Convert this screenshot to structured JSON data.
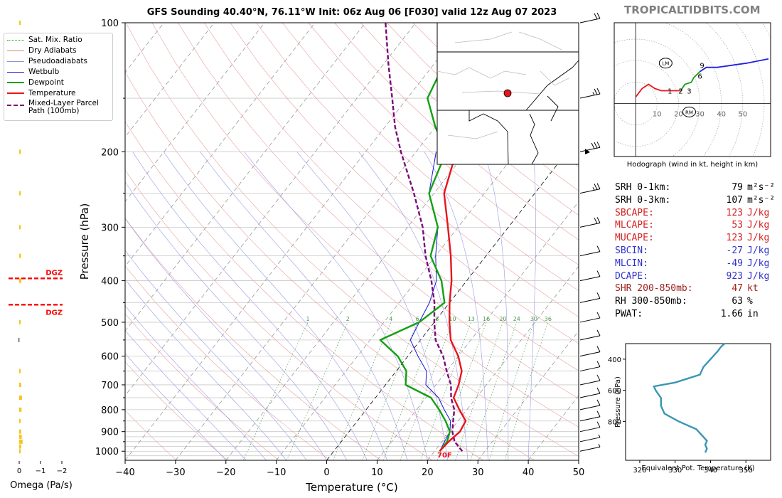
{
  "brand": "TROPICALTIDBITS.COM",
  "title": "GFS Sounding 40.40°N, 76.11°W Init: 06z Aug 06 [F030] valid 12z Aug 07 2023",
  "colors": {
    "temperature": "#e8141c",
    "dewpoint": "#12a012",
    "wetbulb": "#1515d8",
    "parcel": "#7a0a7a",
    "dgz": "#ff0000",
    "omega": "#f5c518",
    "hodo_low": "#e8141c",
    "hodo_mid": "#12a012",
    "hodo_high": "#2020e0",
    "theta_e": "#3a96b4",
    "label_red": "#d42020",
    "label_blue": "#3333cc",
    "label_brown": "#a02020"
  },
  "legend": {
    "items": [
      {
        "label": "Sat. Mix. Ratio",
        "style": "dotted-green"
      },
      {
        "label": "Dry Adiabats",
        "style": "thin-red"
      },
      {
        "label": "Pseudoadiabats",
        "style": "thin-blue"
      },
      {
        "label": "Wetbulb",
        "style": "blue"
      },
      {
        "label": "Dewpoint",
        "style": "green"
      },
      {
        "label": "Temperature",
        "style": "red"
      },
      {
        "label": "Mixed-Layer Parcel Path (100mb)",
        "style": "purple-dashed"
      }
    ]
  },
  "omega": {
    "xlabel": "Omega (Pa/s)",
    "ticks": [
      "0",
      "−1",
      "−2"
    ],
    "dgz_label": "DGZ"
  },
  "hodograph": {
    "caption": "Hodograph (wind in kt, height in km)",
    "ring_labels": [
      "10",
      "20",
      "30",
      "40",
      "50"
    ],
    "marker_lm": "LM",
    "marker_rm": "RM",
    "height_labels": [
      "1",
      "2",
      "3",
      "6",
      "9"
    ]
  },
  "indices": [
    {
      "label": "SRH 0-1km:",
      "value": "79",
      "unit": "m²s⁻²",
      "color": "#000000"
    },
    {
      "label": "SRH 0-3km:",
      "value": "107",
      "unit": "m²s⁻²",
      "color": "#000000"
    },
    {
      "label": "SBCAPE:",
      "value": "123",
      "unit": "J/kg",
      "color": "#d42020"
    },
    {
      "label": "MLCAPE:",
      "value": "53",
      "unit": "J/kg",
      "color": "#d42020"
    },
    {
      "label": "MUCAPE:",
      "value": "123",
      "unit": "J/kg",
      "color": "#d42020"
    },
    {
      "label": "SBCIN:",
      "value": "-27",
      "unit": "J/kg",
      "color": "#3333cc"
    },
    {
      "label": "MLCIN:",
      "value": "-49",
      "unit": "J/kg",
      "color": "#3333cc"
    },
    {
      "label": "DCAPE:",
      "value": "923",
      "unit": "J/kg",
      "color": "#3333cc"
    },
    {
      "label": "SHR 200-850mb:",
      "value": "47",
      "unit": "kt",
      "color": "#a02020"
    },
    {
      "label": "RH 300-850mb:",
      "value": "63",
      "unit": "%",
      "color": "#000000"
    },
    {
      "label": "PWAT:",
      "value": "1.66",
      "unit": "in",
      "color": "#000000"
    }
  ],
  "surface_temp_label": "70F",
  "chart_data": [
    {
      "type": "line",
      "name": "skew-t",
      "xlabel": "Temperature (°C)",
      "ylabel": "Pressure (hPa)",
      "xlim": [
        -40,
        50
      ],
      "ylim": [
        1050,
        100
      ],
      "y_scale": "log",
      "xticks": [
        "−40",
        "−30",
        "−20",
        "−10",
        "0",
        "10",
        "20",
        "30",
        "40",
        "50"
      ],
      "yticks": [
        "100",
        "200",
        "300",
        "400",
        "500",
        "600",
        "700",
        "800",
        "900",
        "1000"
      ],
      "mixing_ratio_labels": [
        "1",
        "2",
        "4",
        "6",
        "8",
        "10",
        "13",
        "16",
        "20",
        "24",
        "30",
        "36"
      ],
      "series": [
        {
          "name": "Temperature",
          "points": [
            [
              21,
              1000
            ],
            [
              21.3,
              950
            ],
            [
              22,
              900
            ],
            [
              21.5,
              850
            ],
            [
              18.5,
              800
            ],
            [
              15.5,
              750
            ],
            [
              14.5,
              700
            ],
            [
              13,
              650
            ],
            [
              10,
              600
            ],
            [
              6,
              550
            ],
            [
              3,
              500
            ],
            [
              0,
              450
            ],
            [
              -3,
              400
            ],
            [
              -7,
              350
            ],
            [
              -12,
              300
            ],
            [
              -18,
              250
            ],
            [
              -22,
              200
            ],
            [
              -20,
              175
            ],
            [
              -18,
              150
            ],
            [
              -14,
              125
            ],
            [
              -11,
              100
            ]
          ]
        },
        {
          "name": "Dewpoint",
          "points": [
            [
              21,
              1000
            ],
            [
              21,
              950
            ],
            [
              20,
              900
            ],
            [
              17.5,
              850
            ],
            [
              14.5,
              800
            ],
            [
              11,
              750
            ],
            [
              4,
              700
            ],
            [
              2,
              650
            ],
            [
              -2,
              600
            ],
            [
              -8,
              550
            ],
            [
              -3,
              500
            ],
            [
              -1,
              450
            ],
            [
              -5,
              400
            ],
            [
              -11,
              350
            ],
            [
              -14,
              300
            ],
            [
              -21,
              250
            ],
            [
              -24,
              200
            ],
            [
              -30,
              175
            ],
            [
              -36,
              150
            ],
            [
              -38,
              125
            ],
            [
              -40,
              100
            ]
          ]
        },
        {
          "name": "Wetbulb",
          "points": [
            [
              21,
              1000
            ],
            [
              20.5,
              950
            ],
            [
              20,
              900
            ],
            [
              18.5,
              850
            ],
            [
              15.5,
              800
            ],
            [
              12.5,
              750
            ],
            [
              8,
              700
            ],
            [
              6,
              650
            ],
            [
              2,
              600
            ],
            [
              -2,
              550
            ],
            [
              -3,
              500
            ],
            [
              -4,
              450
            ],
            [
              -6,
              400
            ],
            [
              -10,
              350
            ],
            [
              -14,
              300
            ],
            [
              -21,
              250
            ],
            [
              -26,
              200
            ]
          ]
        },
        {
          "name": "Mixed-Layer Parcel Path (100mb)",
          "points": [
            [
              25.5,
              1000
            ],
            [
              22.5,
              950
            ],
            [
              20.5,
              900
            ],
            [
              19,
              850
            ],
            [
              17.5,
              800
            ],
            [
              15,
              750
            ],
            [
              13,
              700
            ],
            [
              10,
              650
            ],
            [
              7,
              600
            ],
            [
              3,
              550
            ],
            [
              0,
              500
            ],
            [
              -3,
              450
            ],
            [
              -7,
              400
            ],
            [
              -12,
              350
            ],
            [
              -17,
              300
            ],
            [
              -24,
              250
            ],
            [
              -33,
              200
            ],
            [
              -38,
              175
            ],
            [
              -43,
              150
            ],
            [
              -49,
              125
            ],
            [
              -56,
              100
            ]
          ]
        }
      ]
    },
    {
      "type": "line",
      "name": "equivalent-potential-temperature",
      "xlabel": "Equivalent Pot. Temperature (K)",
      "ylabel": "Pressure (hPa)",
      "xlim": [
        316,
        357
      ],
      "ylim": [
        1050,
        300
      ],
      "xticks": [
        "320",
        "330",
        "340",
        "350"
      ],
      "yticks": [
        "400",
        "600",
        "800"
      ],
      "series": [
        {
          "name": "theta-e",
          "points": [
            [
              338.5,
              1000
            ],
            [
              339,
              975
            ],
            [
              338.5,
              950
            ],
            [
              339,
              925
            ],
            [
              338,
              900
            ],
            [
              336,
              850
            ],
            [
              331,
              800
            ],
            [
              327,
              750
            ],
            [
              326,
              700
            ],
            [
              326,
              650
            ],
            [
              324.5,
              600
            ],
            [
              324,
              575
            ],
            [
              330,
              550
            ],
            [
              337,
              500
            ],
            [
              338,
              450
            ],
            [
              340,
              400
            ],
            [
              342,
              350
            ],
            [
              343,
              320
            ],
            [
              344,
              300
            ]
          ]
        }
      ]
    },
    {
      "type": "line",
      "name": "hodograph",
      "xlim": [
        -10,
        63
      ],
      "ylim": [
        -25,
        38
      ],
      "series": [
        {
          "name": "0-3 km",
          "points": [
            [
              0,
              3
            ],
            [
              3,
              7
            ],
            [
              6,
              9
            ],
            [
              9,
              7
            ],
            [
              12,
              6
            ],
            [
              16,
              6
            ],
            [
              19,
              6
            ],
            [
              21,
              6
            ]
          ]
        },
        {
          "name": "3-6 km",
          "points": [
            [
              21,
              6
            ],
            [
              23,
              9
            ],
            [
              26,
              10
            ],
            [
              27,
              12
            ],
            [
              30,
              15
            ]
          ]
        },
        {
          "name": "6-12 km",
          "points": [
            [
              30,
              15
            ],
            [
              33,
              17
            ],
            [
              38,
              17
            ],
            [
              45,
              18
            ],
            [
              52,
              19
            ],
            [
              62,
              21
            ]
          ]
        }
      ],
      "storm_motion": {
        "left_mover": [
          14,
          19
        ],
        "right_mover": [
          25,
          -4
        ]
      }
    },
    {
      "type": "bar",
      "name": "omega",
      "xlim": [
        0.2,
        -2.2
      ],
      "ylim": [
        1050,
        100
      ],
      "series": [
        {
          "name": "omega",
          "points": [
            [
              0.0,
              100
            ],
            [
              -0.02,
              140
            ],
            [
              0.0,
              200
            ],
            [
              0.0,
              250
            ],
            [
              -0.05,
              300
            ],
            [
              -0.08,
              350
            ],
            [
              -0.1,
              400
            ],
            [
              0.0,
              500
            ],
            [
              0.05,
              550
            ],
            [
              -0.06,
              650
            ],
            [
              -0.09,
              700
            ],
            [
              -0.13,
              750
            ],
            [
              -0.11,
              800
            ],
            [
              -0.06,
              850
            ],
            [
              -0.09,
              900
            ],
            [
              -0.12,
              925
            ],
            [
              -0.16,
              950
            ],
            [
              -0.09,
              975
            ],
            [
              -0.05,
              1000
            ]
          ]
        }
      ],
      "dgz": [
        {
          "p_top": 395,
          "p_bottom": 455
        }
      ]
    }
  ]
}
